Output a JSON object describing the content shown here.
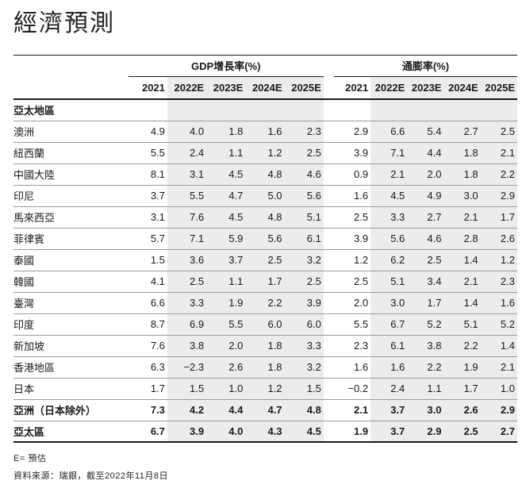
{
  "title": "經濟預測",
  "table": {
    "groups": {
      "gdp": "GDP增長率(%)",
      "inflation": "通膨率(%)"
    },
    "year_headers": [
      "2021",
      "2022E",
      "2023E",
      "2024E",
      "2025E"
    ],
    "section_header": "亞太地區",
    "rows": [
      {
        "label": "澳洲",
        "bold": false,
        "gdp": [
          "4.9",
          "4.0",
          "1.8",
          "1.6",
          "2.3"
        ],
        "inflation": [
          "2.9",
          "6.6",
          "5.4",
          "2.7",
          "2.5"
        ]
      },
      {
        "label": "紐西蘭",
        "bold": false,
        "gdp": [
          "5.5",
          "2.4",
          "1.1",
          "1.2",
          "2.5"
        ],
        "inflation": [
          "3.9",
          "7.1",
          "4.4",
          "1.8",
          "2.1"
        ]
      },
      {
        "label": "中國大陸",
        "bold": false,
        "gdp": [
          "8.1",
          "3.1",
          "4.5",
          "4.8",
          "4.6"
        ],
        "inflation": [
          "0.9",
          "2.1",
          "2.0",
          "1.8",
          "2.2"
        ]
      },
      {
        "label": "印尼",
        "bold": false,
        "gdp": [
          "3.7",
          "5.5",
          "4.7",
          "5.0",
          "5.6"
        ],
        "inflation": [
          "1.6",
          "4.5",
          "4.9",
          "3.0",
          "2.9"
        ]
      },
      {
        "label": "馬來西亞",
        "bold": false,
        "gdp": [
          "3.1",
          "7.6",
          "4.5",
          "4.8",
          "5.1"
        ],
        "inflation": [
          "2.5",
          "3.3",
          "2.7",
          "2.1",
          "1.7"
        ]
      },
      {
        "label": "菲律賓",
        "bold": false,
        "gdp": [
          "5.7",
          "7.1",
          "5.9",
          "5.6",
          "6.1"
        ],
        "inflation": [
          "3.9",
          "5.6",
          "4.6",
          "2.8",
          "2.6"
        ]
      },
      {
        "label": "泰國",
        "bold": false,
        "gdp": [
          "1.5",
          "3.6",
          "3.7",
          "2.5",
          "3.2"
        ],
        "inflation": [
          "1.2",
          "6.2",
          "2.5",
          "1.4",
          "1.2"
        ]
      },
      {
        "label": "韓國",
        "bold": false,
        "gdp": [
          "4.1",
          "2.5",
          "1.1",
          "1.7",
          "2.5"
        ],
        "inflation": [
          "2.5",
          "5.1",
          "3.4",
          "2.1",
          "2.3"
        ]
      },
      {
        "label": "臺灣",
        "bold": false,
        "gdp": [
          "6.6",
          "3.3",
          "1.9",
          "2.2",
          "3.9"
        ],
        "inflation": [
          "2.0",
          "3.0",
          "1.7",
          "1.4",
          "1.6"
        ]
      },
      {
        "label": "印度",
        "bold": false,
        "gdp": [
          "8.7",
          "6.9",
          "5.5",
          "6.0",
          "6.0"
        ],
        "inflation": [
          "5.5",
          "6.7",
          "5.2",
          "5.1",
          "5.2"
        ]
      },
      {
        "label": "新加坡",
        "bold": false,
        "gdp": [
          "7.6",
          "3.8",
          "2.0",
          "1.8",
          "3.3"
        ],
        "inflation": [
          "2.3",
          "6.1",
          "3.8",
          "2.2",
          "1.4"
        ]
      },
      {
        "label": "香港地區",
        "bold": false,
        "gdp": [
          "6.3",
          "−2.3",
          "2.6",
          "1.8",
          "3.2"
        ],
        "inflation": [
          "1.6",
          "1.6",
          "2.2",
          "1.9",
          "2.1"
        ]
      },
      {
        "label": "日本",
        "bold": false,
        "gdp": [
          "1.7",
          "1.5",
          "1.0",
          "1.2",
          "1.5"
        ],
        "inflation": [
          "−0.2",
          "2.4",
          "1.1",
          "1.7",
          "1.0"
        ]
      },
      {
        "label": "亞洲（日本除外）",
        "bold": true,
        "gdp": [
          "7.3",
          "4.2",
          "4.4",
          "4.7",
          "4.8"
        ],
        "inflation": [
          "2.1",
          "3.7",
          "3.0",
          "2.6",
          "2.9"
        ]
      },
      {
        "label": "亞太區",
        "bold": true,
        "gdp": [
          "6.7",
          "3.9",
          "4.0",
          "4.3",
          "4.5"
        ],
        "inflation": [
          "1.9",
          "3.7",
          "2.9",
          "2.5",
          "2.7"
        ]
      }
    ]
  },
  "footnotes": {
    "estimate": "E= 預估",
    "source": "資料來源：瑞銀，截至2022年11月8日"
  },
  "colors": {
    "shade": "#ececec",
    "rule_dark": "#1a1a1a",
    "rule_light": "#9b9b9b",
    "text": "#1a1a1a"
  }
}
